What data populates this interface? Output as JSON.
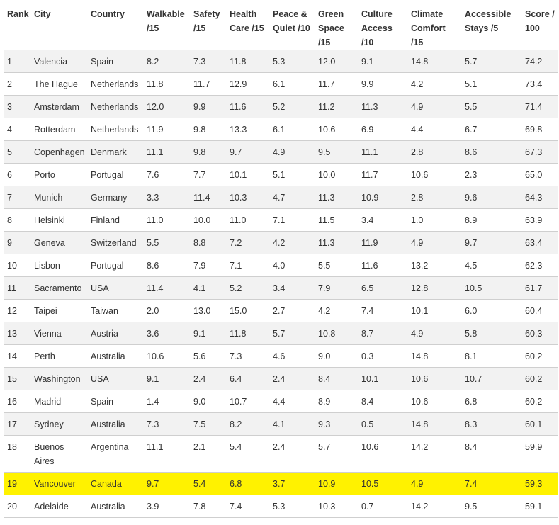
{
  "highlight_color": "#fff200",
  "columns": [
    "Rank",
    "City",
    "Country",
    "Walkable /15",
    "Safety /15",
    "Health Care /15",
    "Peace & Quiet /10",
    "Green Space /15",
    "Culture Access /10",
    "Climate Comfort /15",
    "Accessible Stays /5",
    "Score / 100"
  ],
  "rows": [
    [
      "1",
      "Valencia",
      "Spain",
      "8.2",
      "7.3",
      "11.8",
      "5.3",
      "12.0",
      "9.1",
      "14.8",
      "5.7",
      "74.2"
    ],
    [
      "2",
      "The Hague",
      "Netherlands",
      "11.8",
      "11.7",
      "12.9",
      "6.1",
      "11.7",
      "9.9",
      "4.2",
      "5.1",
      "73.4"
    ],
    [
      "3",
      "Amsterdam",
      "Netherlands",
      "12.0",
      "9.9",
      "11.6",
      "5.2",
      "11.2",
      "11.3",
      "4.9",
      "5.5",
      "71.4"
    ],
    [
      "4",
      "Rotterdam",
      "Netherlands",
      "11.9",
      "9.8",
      "13.3",
      "6.1",
      "10.6",
      "6.9",
      "4.4",
      "6.7",
      "69.8"
    ],
    [
      "5",
      "Copenhagen",
      "Denmark",
      "11.1",
      "9.8",
      "9.7",
      "4.9",
      "9.5",
      "11.1",
      "2.8",
      "8.6",
      "67.3"
    ],
    [
      "6",
      "Porto",
      "Portugal",
      "7.6",
      "7.7",
      "10.1",
      "5.1",
      "10.0",
      "11.7",
      "10.6",
      "2.3",
      "65.0"
    ],
    [
      "7",
      "Munich",
      "Germany",
      "3.3",
      "11.4",
      "10.3",
      "4.7",
      "11.3",
      "10.9",
      "2.8",
      "9.6",
      "64.3"
    ],
    [
      "8",
      "Helsinki",
      "Finland",
      "11.0",
      "10.0",
      "11.0",
      "7.1",
      "11.5",
      "3.4",
      "1.0",
      "8.9",
      "63.9"
    ],
    [
      "9",
      "Geneva",
      "Switzerland",
      "5.5",
      "8.8",
      "7.2",
      "4.2",
      "11.3",
      "11.9",
      "4.9",
      "9.7",
      "63.4"
    ],
    [
      "10",
      "Lisbon",
      "Portugal",
      "8.6",
      "7.9",
      "7.1",
      "4.0",
      "5.5",
      "11.6",
      "13.2",
      "4.5",
      "62.3"
    ],
    [
      "11",
      "Sacramento",
      "USA",
      "11.4",
      "4.1",
      "5.2",
      "3.4",
      "7.9",
      "6.5",
      "12.8",
      "10.5",
      "61.7"
    ],
    [
      "12",
      "Taipei",
      "Taiwan",
      "2.0",
      "13.0",
      "15.0",
      "2.7",
      "4.2",
      "7.4",
      "10.1",
      "6.0",
      "60.4"
    ],
    [
      "13",
      "Vienna",
      "Austria",
      "3.6",
      "9.1",
      "11.8",
      "5.7",
      "10.8",
      "8.7",
      "4.9",
      "5.8",
      "60.3"
    ],
    [
      "14",
      "Perth",
      "Australia",
      "10.6",
      "5.6",
      "7.3",
      "4.6",
      "9.0",
      "0.3",
      "14.8",
      "8.1",
      "60.2"
    ],
    [
      "15",
      "Washington",
      "USA",
      "9.1",
      "2.4",
      "6.4",
      "2.4",
      "8.4",
      "10.1",
      "10.6",
      "10.7",
      "60.2"
    ],
    [
      "16",
      "Madrid",
      "Spain",
      "1.4",
      "9.0",
      "10.7",
      "4.4",
      "8.9",
      "8.4",
      "10.6",
      "6.8",
      "60.2"
    ],
    [
      "17",
      "Sydney",
      "Australia",
      "7.3",
      "7.5",
      "8.2",
      "4.1",
      "9.3",
      "0.5",
      "14.8",
      "8.3",
      "60.1"
    ],
    [
      "18",
      "Buenos Aires",
      "Argentina",
      "11.1",
      "2.1",
      "5.4",
      "2.4",
      "5.7",
      "10.6",
      "14.2",
      "8.4",
      "59.9"
    ],
    [
      "19",
      "Vancouver",
      "Canada",
      "9.7",
      "5.4",
      "6.8",
      "3.7",
      "10.9",
      "10.5",
      "4.9",
      "7.4",
      "59.3"
    ],
    [
      "20",
      "Adelaide",
      "Australia",
      "3.9",
      "7.8",
      "7.4",
      "5.3",
      "10.3",
      "0.7",
      "14.2",
      "9.5",
      "59.1"
    ]
  ],
  "highlighted_rank": "19"
}
